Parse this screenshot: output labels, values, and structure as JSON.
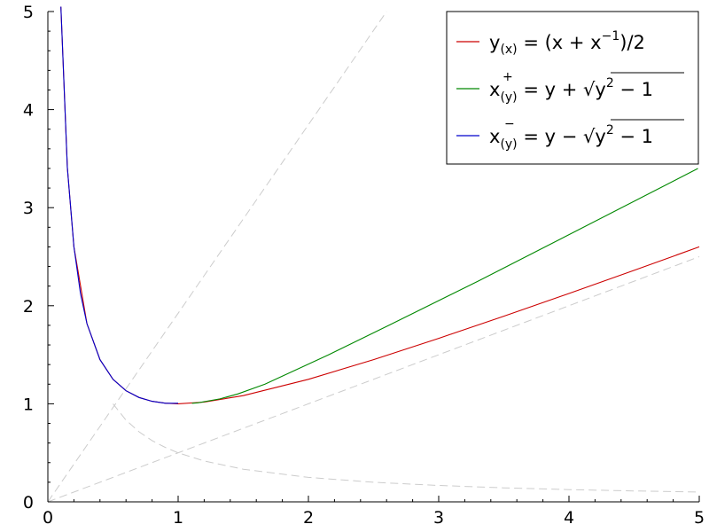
{
  "chart_data": {
    "type": "line",
    "xlim": [
      0,
      5
    ],
    "ylim": [
      0,
      5
    ],
    "x_ticks": [
      "0",
      "1",
      "2",
      "3",
      "4",
      "5"
    ],
    "y_ticks": [
      "0",
      "1",
      "2",
      "3",
      "4",
      "5"
    ],
    "grid": false,
    "legend_position": "top-right",
    "series": [
      {
        "name": "y(x) = (x + x^-1)/2",
        "color": "#cc0000",
        "style": "solid",
        "x": [
          0.1,
          0.15,
          0.2,
          0.3,
          0.4,
          0.5,
          0.6,
          0.7,
          0.8,
          0.9,
          1.0,
          1.2,
          1.5,
          2.0,
          2.5,
          3.0,
          3.5,
          4.0,
          4.5,
          5.0
        ],
        "y": [
          5.05,
          3.408,
          2.6,
          1.817,
          1.45,
          1.25,
          1.133,
          1.064,
          1.025,
          1.006,
          1.0,
          1.017,
          1.083,
          1.25,
          1.45,
          1.667,
          1.893,
          2.125,
          2.361,
          2.6
        ]
      },
      {
        "name": "x+(y) = y + sqrt(y^2 - 1)",
        "color": "#008800",
        "style": "solid",
        "x": [
          1.0,
          1.142,
          1.226,
          1.372,
          1.5,
          1.75,
          2.0,
          2.25,
          2.5,
          2.618
        ],
        "y": [
          1.005,
          1.01,
          1.02,
          1.05,
          1.083,
          1.161,
          1.25,
          1.347,
          1.45,
          1.5
        ],
        "note_x_values": [
          1.106,
          1.152,
          1.32,
          1.458,
          1.667,
          2.155,
          2.618,
          3.302,
          3.964,
          4.99
        ],
        "note_y_values": [
          1.005,
          1.01,
          1.05,
          1.1,
          1.2,
          1.5,
          1.8,
          2.25,
          2.7,
          3.4
        ]
      },
      {
        "name": "x−(y) = y − sqrt(y^2 − 1)",
        "color": "#0000cc",
        "style": "solid",
        "x": [
          1.0,
          0.904,
          0.8,
          0.7,
          0.6,
          0.5,
          0.4,
          0.3,
          0.25,
          0.2,
          0.15,
          0.1
        ],
        "y": [
          1.005,
          1.005,
          1.025,
          1.064,
          1.133,
          1.25,
          1.45,
          1.817,
          2.125,
          2.6,
          3.408,
          5.05
        ]
      },
      {
        "name": "",
        "color": "#cccccc",
        "style": "dashed",
        "x": [
          0,
          2.6
        ],
        "y": [
          0,
          5
        ]
      },
      {
        "name": "",
        "color": "#cccccc",
        "style": "dashed",
        "x": [
          0,
          5
        ],
        "y": [
          0,
          2.5
        ]
      },
      {
        "name": "",
        "color": "#cccccc",
        "style": "dashed",
        "x": [
          0.5,
          0.6,
          0.7,
          0.8,
          0.9,
          1.0,
          1.2,
          1.5,
          2.0,
          2.5,
          3.0,
          3.5,
          4.0,
          4.5,
          5.0
        ],
        "y": [
          1.0,
          0.833,
          0.714,
          0.625,
          0.556,
          0.5,
          0.417,
          0.333,
          0.25,
          0.2,
          0.167,
          0.143,
          0.125,
          0.111,
          0.1
        ]
      }
    ]
  }
}
